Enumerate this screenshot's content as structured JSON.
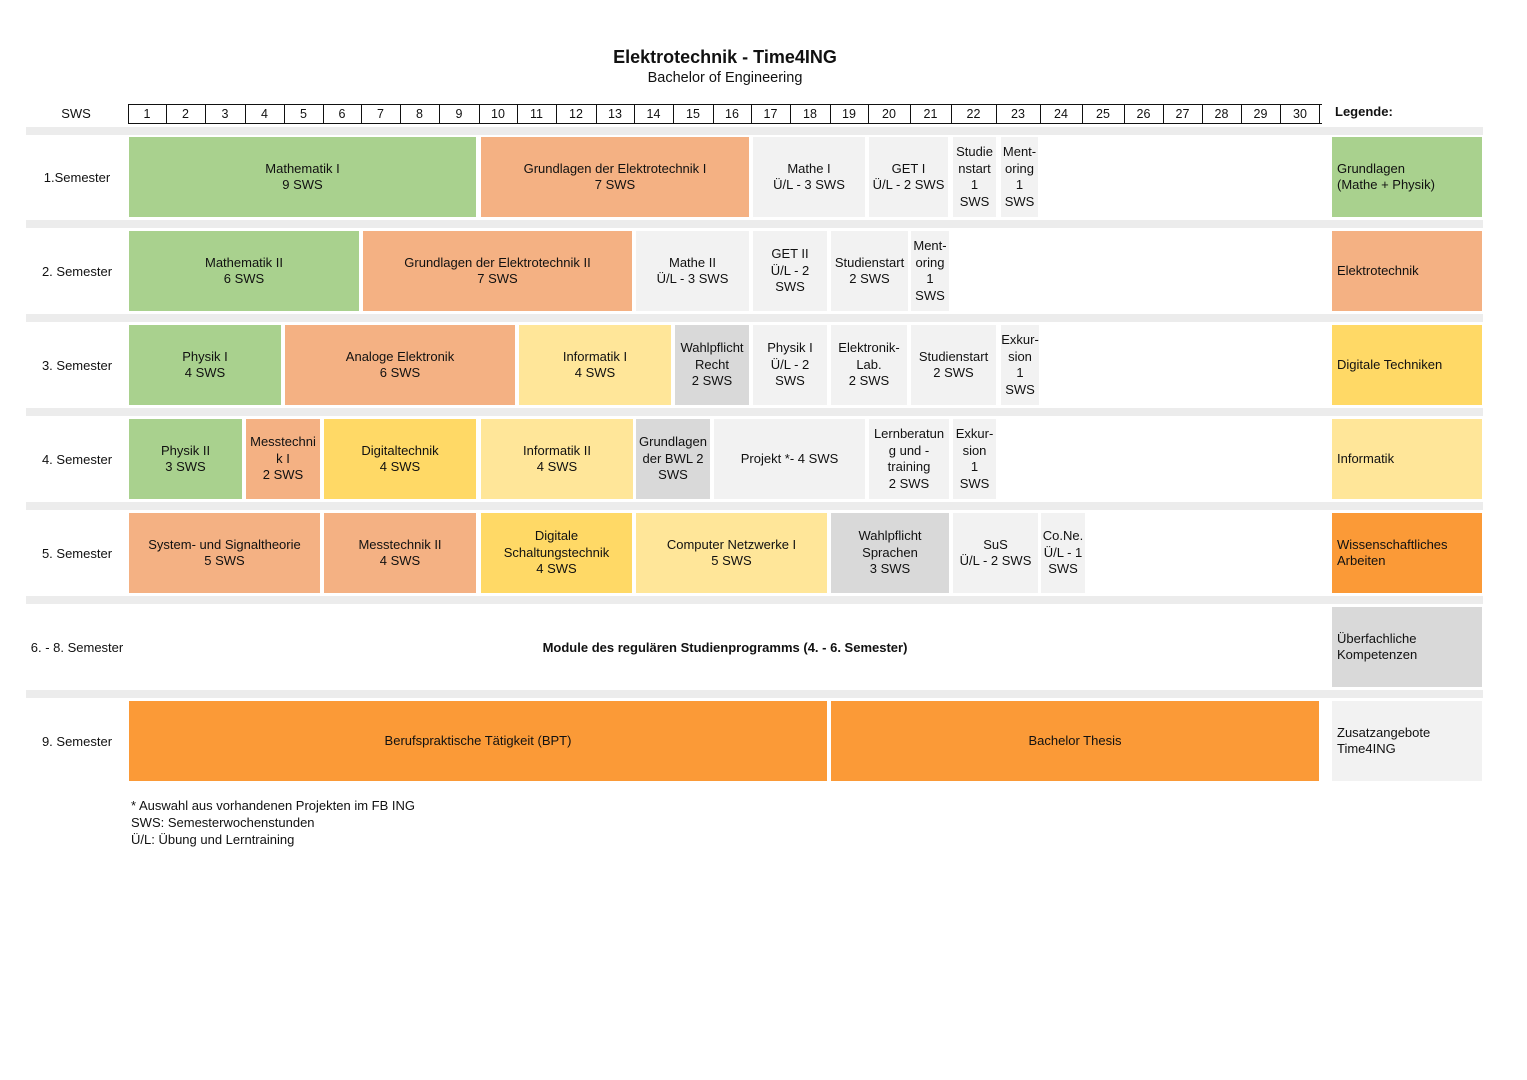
{
  "header": {
    "title": "Elektrotechnik - Time4ING",
    "subtitle": "Bachelor of Engineering"
  },
  "ruler": {
    "label": "SWS",
    "ticks": [
      "1",
      "2",
      "3",
      "4",
      "5",
      "6",
      "7",
      "8",
      "9",
      "10",
      "11",
      "12",
      "13",
      "14",
      "15",
      "16",
      "17",
      "18",
      "19",
      "20",
      "21",
      "22",
      "23",
      "24",
      "25",
      "26",
      "27",
      "28",
      "29",
      "30"
    ]
  },
  "legend": {
    "heading": "Legende:",
    "items": [
      {
        "label": "Grundlagen\n(Mathe + Physik)",
        "color": "#a9d18e"
      },
      {
        "label": "Elektrotechnik",
        "color": "#f4b183"
      },
      {
        "label": "Digitale Techniken",
        "color": "#ffd966"
      },
      {
        "label": "Informatik",
        "color": "#ffe699"
      },
      {
        "label": "Wissenschaftliches\nArbeiten",
        "color": "#fb9a37"
      },
      {
        "label": "Überfachliche\nKompetenzen",
        "color": "#d9d9d9"
      },
      {
        "label": "Zusatzangebote\nTime4ING",
        "color": "#f2f2f2"
      }
    ]
  },
  "semesters": [
    {
      "label": "1.Semester",
      "modules": [
        {
          "text": "Mathematik I\n9 SWS",
          "category": "grundlagen"
        },
        {
          "text": "Grundlagen der Elektrotechnik I\n7 SWS",
          "category": "elektrotechnik"
        },
        {
          "text": "Mathe I\nÜ/L - 3 SWS",
          "category": "zusatz"
        },
        {
          "text": "GET I\nÜ/L - 2 SWS",
          "category": "zusatz"
        },
        {
          "text": "Studie\nnstart\n1\nSWS",
          "category": "zusatz"
        },
        {
          "text": "Ment-\noring\n1\nSWS",
          "category": "zusatz"
        }
      ]
    },
    {
      "label": "2. Semester",
      "modules": [
        {
          "text": "Mathematik II\n6 SWS",
          "category": "grundlagen"
        },
        {
          "text": "Grundlagen der Elektrotechnik II\n7 SWS",
          "category": "elektrotechnik"
        },
        {
          "text": "Mathe II\nÜ/L - 3 SWS",
          "category": "zusatz"
        },
        {
          "text": "GET II\nÜ/L - 2\nSWS",
          "category": "zusatz"
        },
        {
          "text": "Studienstart\n2 SWS",
          "category": "zusatz"
        },
        {
          "text": "Ment-\noring\n1\nSWS",
          "category": "zusatz"
        }
      ]
    },
    {
      "label": "3. Semester",
      "modules": [
        {
          "text": "Physik I\n4 SWS",
          "category": "grundlagen"
        },
        {
          "text": "Analoge Elektronik\n6 SWS",
          "category": "elektrotechnik"
        },
        {
          "text": "Informatik I\n4 SWS",
          "category": "informatik"
        },
        {
          "text": "Wahlpflicht\nRecht\n2 SWS",
          "category": "ueberfachlich"
        },
        {
          "text": "Physik I\nÜ/L - 2\nSWS",
          "category": "zusatz"
        },
        {
          "text": "Elektronik-\nLab.\n2 SWS",
          "category": "zusatz"
        },
        {
          "text": "Studienstart\n2 SWS",
          "category": "zusatz"
        },
        {
          "text": "Exkur-\nsion\n1\nSWS",
          "category": "zusatz"
        }
      ]
    },
    {
      "label": "4. Semester",
      "modules": [
        {
          "text": "Physik II\n3 SWS",
          "category": "grundlagen"
        },
        {
          "text": "Messtechni\nk I\n2 SWS",
          "category": "elektrotechnik"
        },
        {
          "text": "Digitaltechnik\n4 SWS",
          "category": "digital"
        },
        {
          "text": "Informatik II\n4 SWS",
          "category": "informatik"
        },
        {
          "text": "Grundlagen\nder BWL 2\nSWS",
          "category": "ueberfachlich"
        },
        {
          "text": "Projekt *- 4 SWS",
          "category": "zusatz"
        },
        {
          "text": "Lernberatun\ng und -\ntraining\n2 SWS",
          "category": "zusatz"
        },
        {
          "text": "Exkur-\nsion\n1\nSWS",
          "category": "zusatz"
        }
      ]
    },
    {
      "label": "5. Semester",
      "modules": [
        {
          "text": "System- und Signaltheorie\n5 SWS",
          "category": "elektrotechnik"
        },
        {
          "text": "Messtechnik II\n4 SWS",
          "category": "elektrotechnik"
        },
        {
          "text": "Digitale\nSchaltungstechnik\n4 SWS",
          "category": "digital"
        },
        {
          "text": "Computer Netzwerke I\n5 SWS",
          "category": "informatik"
        },
        {
          "text": "Wahlpflicht\nSprachen\n3 SWS",
          "category": "ueberfachlich"
        },
        {
          "text": "SuS\nÜ/L - 2 SWS",
          "category": "zusatz"
        },
        {
          "text": "Co.Ne.\nÜ/L - 1\nSWS",
          "category": "zusatz"
        }
      ]
    },
    {
      "label": "6. - 8. Semester",
      "note": "Module des regulären Studienprogramms (4. - 6. Semester)",
      "modules": []
    },
    {
      "label": "9. Semester",
      "modules": [
        {
          "text": "Berufspraktische Tätigkeit (BPT)",
          "category": "wissenschaft"
        },
        {
          "text": "Bachelor Thesis",
          "category": "wissenschaft"
        }
      ]
    }
  ],
  "colors": {
    "grundlagen": "#a9d18e",
    "elektrotechnik": "#f4b183",
    "digital": "#ffd966",
    "informatik": "#ffe699",
    "wissenschaft": "#fb9a37",
    "ueberfachlich": "#d9d9d9",
    "zusatz": "#f2f2f2",
    "separator": "#ececec"
  },
  "footnotes": [
    "* Auswahl aus vorhandenen Projekten im FB ING",
    "SWS: Semesterwochenstunden",
    "Ü/L: Übung und Lerntraining"
  ]
}
